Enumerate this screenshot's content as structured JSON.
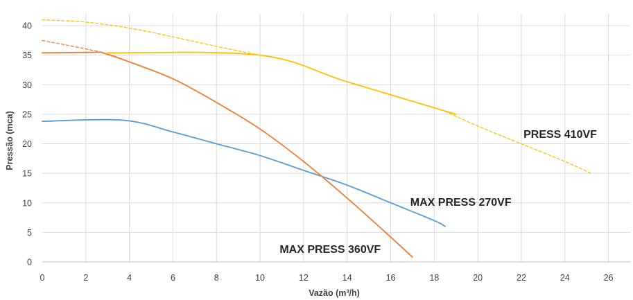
{
  "chart_data": {
    "type": "line",
    "xlabel": "Vazão (m³/h)",
    "ylabel": "Pressão (mca)",
    "xlim": [
      0,
      27
    ],
    "ylim": [
      0,
      42
    ],
    "xticks": [
      0,
      2,
      4,
      6,
      8,
      10,
      12,
      14,
      16,
      18,
      20,
      22,
      24,
      26
    ],
    "yticks": [
      0,
      5,
      10,
      15,
      20,
      25,
      30,
      35,
      40
    ],
    "grid": true,
    "colors": {
      "grid": "#d9d9d9",
      "axis": "#bfbfbf"
    },
    "series": [
      {
        "name": "MAX PRESS 270VF",
        "color": "#5b9bd5",
        "segments": [
          {
            "style": "solid",
            "points": [
              [
                0,
                23.8
              ],
              [
                3.7,
                24.0
              ],
              [
                6,
                22
              ],
              [
                8,
                20
              ],
              [
                10,
                18
              ],
              [
                12,
                15.5
              ],
              [
                14,
                13
              ],
              [
                16,
                10
              ],
              [
                18,
                7
              ],
              [
                18.5,
                6
              ]
            ]
          }
        ]
      },
      {
        "name": "MAX PRESS 360VF",
        "color": "#ed7d31",
        "segments": [
          {
            "style": "solid",
            "points": [
              [
                0,
                35.4
              ],
              [
                2.7,
                35.5
              ]
            ]
          },
          {
            "style": "dashed",
            "points": [
              [
                0,
                37.5
              ],
              [
                2.7,
                35.5
              ],
              [
                3.9,
                34.0
              ]
            ]
          },
          {
            "style": "solid",
            "points": [
              [
                2.7,
                35.5
              ],
              [
                3.9,
                34.0
              ],
              [
                6,
                31
              ],
              [
                8,
                27
              ],
              [
                10,
                22.5
              ],
              [
                12,
                17
              ],
              [
                14,
                10.8
              ],
              [
                16,
                4.2
              ],
              [
                17,
                0.8
              ]
            ]
          }
        ]
      },
      {
        "name": "PRESS 410VF",
        "color": "#ffc000",
        "segments": [
          {
            "style": "dashed",
            "points": [
              [
                0,
                41
              ],
              [
                2,
                40.6
              ],
              [
                4,
                39.6
              ],
              [
                6,
                38.1
              ],
              [
                8,
                36.5
              ],
              [
                10,
                35
              ]
            ]
          },
          {
            "style": "solid",
            "points": [
              [
                3,
                35.4
              ],
              [
                10,
                35
              ],
              [
                14,
                30.5
              ],
              [
                19,
                25
              ]
            ]
          },
          {
            "style": "dashed",
            "points": [
              [
                18.5,
                25.5
              ],
              [
                20,
                23
              ],
              [
                22,
                20
              ],
              [
                24,
                17
              ],
              [
                25.2,
                15
              ]
            ]
          }
        ]
      }
    ],
    "annotations": [
      {
        "text": "PRESS 410VF",
        "x": 22.1,
        "y": 21.0,
        "series": 2
      },
      {
        "text": "MAX PRESS 270VF",
        "x": 16.9,
        "y": 9.5,
        "series": 0
      },
      {
        "text": "MAX PRESS 360VF",
        "x": 10.9,
        "y": 1.5,
        "series": 1
      }
    ]
  }
}
